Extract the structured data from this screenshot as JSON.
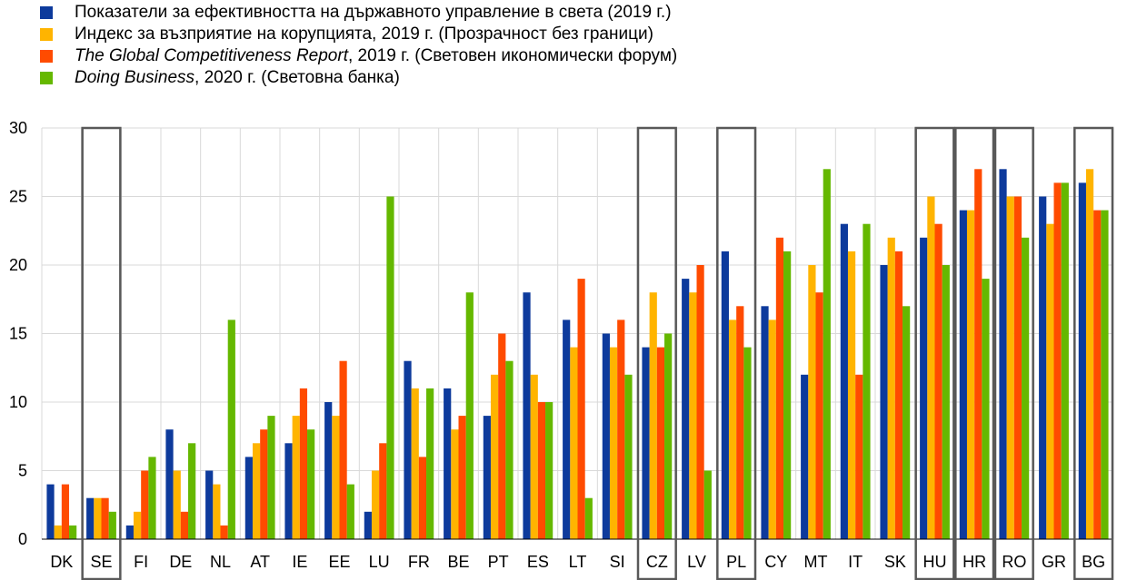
{
  "legend": [
    {
      "label": "Показатели за ефективността на държавното управление в света (2019 г.)",
      "italic": "",
      "rest": "",
      "color": "#0d3a9c"
    },
    {
      "label": "Индекс за възприятие на корупцията, 2019 г. (Прозрачност без граници)",
      "italic": "",
      "rest": "",
      "color": "#ffb400"
    },
    {
      "label": "",
      "italic": "The Global Competitiveness Report",
      "rest": ", 2019 г. (Световен икономически форум)",
      "color": "#ff4b00"
    },
    {
      "label": "",
      "italic": "Doing Business",
      "rest": ", 2020 г. (Световна банка)",
      "color": "#65b800"
    }
  ],
  "chart_data": {
    "type": "bar",
    "categories": [
      "DK",
      "SE",
      "FI",
      "DE",
      "NL",
      "AT",
      "IE",
      "EE",
      "LU",
      "FR",
      "BE",
      "PT",
      "ES",
      "LT",
      "SI",
      "CZ",
      "LV",
      "PL",
      "CY",
      "MT",
      "IT",
      "SK",
      "HU",
      "HR",
      "RO",
      "GR",
      "BG"
    ],
    "highlighted": [
      "SE",
      "CZ",
      "PL",
      "HU",
      "HR",
      "RO",
      "BG"
    ],
    "series": [
      {
        "name": "Показатели за ефективността на държавното управление в света (2019 г.)",
        "color": "#0d3a9c",
        "values": [
          4,
          3,
          1,
          8,
          5,
          6,
          7,
          10,
          2,
          13,
          11,
          9,
          18,
          16,
          15,
          14,
          19,
          21,
          17,
          12,
          23,
          20,
          22,
          24,
          27,
          25,
          26
        ]
      },
      {
        "name": "Индекс за възприятие на корупцията, 2019 г. (Прозрачност без граници)",
        "color": "#ffb400",
        "values": [
          1,
          3,
          2,
          5,
          4,
          7,
          9,
          9,
          5,
          11,
          8,
          12,
          12,
          14,
          14,
          18,
          18,
          16,
          16,
          20,
          21,
          22,
          25,
          24,
          25,
          23,
          27
        ]
      },
      {
        "name": "The Global Competitiveness Report, 2019 г. (Световен икономически форум)",
        "color": "#ff4b00",
        "values": [
          4,
          3,
          5,
          2,
          1,
          8,
          11,
          13,
          7,
          6,
          9,
          15,
          10,
          19,
          16,
          14,
          20,
          17,
          22,
          18,
          12,
          21,
          23,
          27,
          25,
          26,
          24
        ]
      },
      {
        "name": "Doing Business, 2020 г. (Световна банка)",
        "color": "#65b800",
        "values": [
          1,
          2,
          6,
          7,
          16,
          9,
          8,
          4,
          25,
          11,
          18,
          13,
          10,
          3,
          12,
          15,
          5,
          14,
          21,
          27,
          23,
          17,
          20,
          19,
          22,
          26,
          24
        ]
      }
    ],
    "ylim": [
      0,
      30
    ],
    "yticks": [
      0,
      5,
      10,
      15,
      20,
      25,
      30
    ],
    "title": "",
    "xlabel": "",
    "ylabel": "",
    "grid": true,
    "legend_position": "top-left"
  }
}
